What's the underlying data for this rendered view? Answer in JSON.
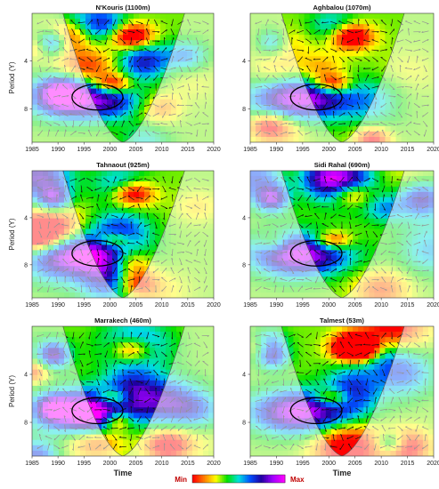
{
  "chart_data": [
    {
      "type": "heatmap",
      "title": "N'Kouris (1100m)",
      "ylabel": "Period (Y)",
      "xlabel": "",
      "xticks": [
        1985,
        1990,
        1995,
        2000,
        2005,
        2010,
        2015,
        2020
      ],
      "yticks": [
        4,
        8
      ],
      "xlim": [
        1985,
        2020
      ]
    },
    {
      "type": "heatmap",
      "title": "Aghbalou (1070m)",
      "ylabel": "",
      "xlabel": "",
      "xticks": [
        1985,
        1990,
        1995,
        2000,
        2005,
        2010,
        2015,
        2020
      ],
      "yticks": [
        4,
        8
      ],
      "xlim": [
        1985,
        2020
      ]
    },
    {
      "type": "heatmap",
      "title": "Tahnaout (925m)",
      "ylabel": "Period (Y)",
      "xlabel": "",
      "xticks": [
        1985,
        1990,
        1995,
        2000,
        2005,
        2010,
        2015,
        2020
      ],
      "yticks": [
        4,
        8
      ],
      "xlim": [
        1985,
        2020
      ]
    },
    {
      "type": "heatmap",
      "title": "Sidi Rahal (690m)",
      "ylabel": "",
      "xlabel": "",
      "xticks": [
        1985,
        1990,
        1995,
        2000,
        2005,
        2010,
        2015,
        2020
      ],
      "yticks": [
        4,
        8
      ],
      "xlim": [
        1985,
        2020
      ]
    },
    {
      "type": "heatmap",
      "title": "Marrakech (460m)",
      "ylabel": "Period (Y)",
      "xlabel": "Time",
      "xticks": [
        1985,
        1990,
        1995,
        2000,
        2005,
        2010,
        2015,
        2020
      ],
      "yticks": [
        4,
        8
      ],
      "xlim": [
        1985,
        2020
      ]
    },
    {
      "type": "heatmap",
      "title": "Talmest (53m)",
      "ylabel": "",
      "xlabel": "Time",
      "xticks": [
        1985,
        1990,
        1995,
        2000,
        2005,
        2010,
        2015,
        2020
      ],
      "yticks": [
        4,
        8
      ],
      "xlim": [
        1985,
        2020
      ]
    }
  ],
  "colorbar": {
    "min_label": "Min",
    "max_label": "Max",
    "colors": [
      "#ff0000",
      "#ff8000",
      "#ffff00",
      "#00e000",
      "#00e0e0",
      "#0050ff",
      "#2000a0",
      "#a000ff",
      "#ff00ff"
    ]
  }
}
